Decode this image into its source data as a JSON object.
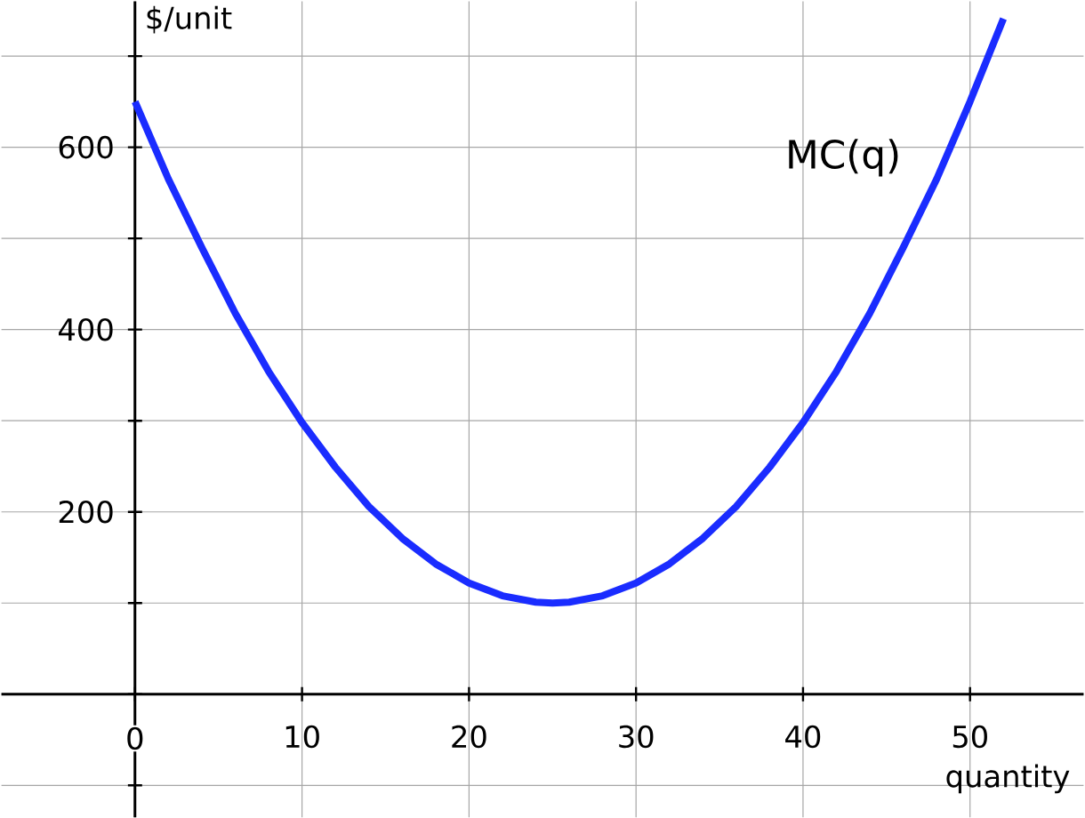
{
  "chart_data": {
    "type": "line",
    "xlabel": "quantity",
    "ylabel": "$/unit",
    "x": [
      0,
      2,
      4,
      6,
      8,
      10,
      12,
      14,
      16,
      18,
      20,
      22,
      24,
      25,
      26,
      28,
      30,
      32,
      34,
      36,
      38,
      40,
      42,
      44,
      46,
      48,
      50,
      52
    ],
    "series": [
      {
        "name": "MC(q)",
        "color": "#1a2cff",
        "values": [
          650,
          565,
          490,
          418,
          354,
          298,
          249,
          206,
          171,
          143,
          122,
          108,
          101,
          100,
          101,
          108,
          122,
          143,
          171,
          206,
          249,
          298,
          354,
          418,
          490,
          565,
          650,
          741
        ]
      }
    ],
    "xlim": [
      -8,
      56.8
    ],
    "ylim": [
      -135,
      760
    ],
    "xticks": [
      {
        "value": 0,
        "label": "0"
      },
      10,
      20,
      30,
      40,
      50
    ],
    "yticks": [
      {
        "value": -100,
        "label": null
      },
      {
        "value": 0,
        "label": null
      },
      {
        "value": 100,
        "label": null
      },
      200,
      {
        "value": 300,
        "label": null
      },
      400,
      {
        "value": 500,
        "label": null
      },
      600,
      {
        "value": 700,
        "label": null
      }
    ],
    "grid": true,
    "legend": false,
    "marker": "none",
    "line_style": "solid"
  }
}
